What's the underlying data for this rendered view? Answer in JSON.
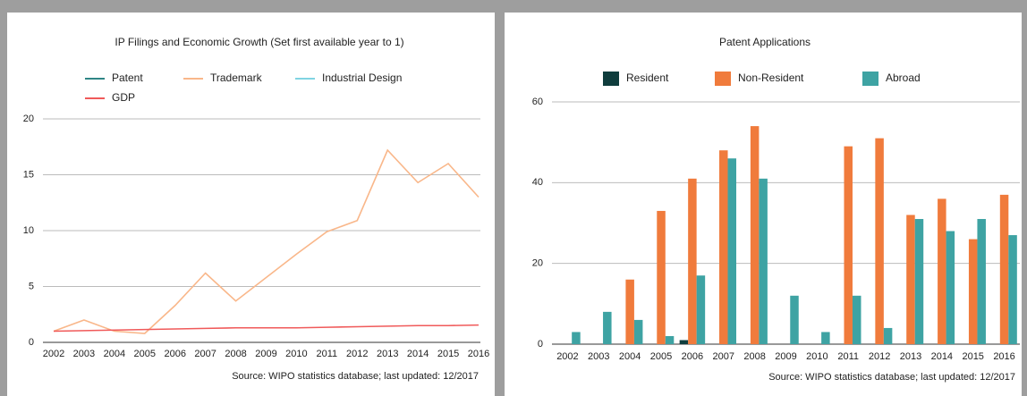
{
  "chart_data": [
    {
      "type": "line",
      "title": "IP Filings and Economic Growth (Set first available year to 1)",
      "categories": [
        "2002",
        "2003",
        "2004",
        "2005",
        "2006",
        "2007",
        "2008",
        "2009",
        "2010",
        "2011",
        "2012",
        "2013",
        "2014",
        "2015",
        "2016"
      ],
      "series": [
        {
          "name": "Patent",
          "color": "#2f8585",
          "values": [
            null,
            null,
            null,
            null,
            null,
            null,
            null,
            null,
            null,
            null,
            null,
            null,
            null,
            null,
            null
          ]
        },
        {
          "name": "Trademark",
          "color": "#f9b78a",
          "values": [
            1,
            2,
            1,
            0.8,
            3.3,
            6.2,
            3.7,
            5.8,
            7.9,
            9.9,
            10.9,
            17.2,
            14.3,
            16,
            13
          ]
        },
        {
          "name": "Industrial Design",
          "color": "#80d4e2",
          "values": [
            null,
            null,
            null,
            null,
            null,
            null,
            null,
            null,
            null,
            null,
            null,
            null,
            null,
            null,
            null
          ]
        },
        {
          "name": "GDP",
          "color": "#f05a5a",
          "values": [
            1,
            1.05,
            1.1,
            1.15,
            1.2,
            1.25,
            1.3,
            1.3,
            1.3,
            1.35,
            1.4,
            1.45,
            1.5,
            1.5,
            1.55
          ]
        }
      ],
      "ylim": [
        0,
        20
      ],
      "yticks": [
        0,
        5,
        10,
        15,
        20
      ],
      "grid": true,
      "note": "Source: WIPO statistics database; last updated: 12/2017"
    },
    {
      "type": "bar",
      "title": "Patent Applications",
      "categories": [
        "2002",
        "2003",
        "2004",
        "2005",
        "2006",
        "2007",
        "2008",
        "2009",
        "2010",
        "2011",
        "2012",
        "2013",
        "2014",
        "2015",
        "2016"
      ],
      "series": [
        {
          "name": "Resident",
          "color": "#0f3d3d",
          "values": [
            0,
            0,
            0,
            0,
            1,
            0,
            0,
            0,
            0,
            0,
            0,
            0,
            0,
            0,
            0
          ]
        },
        {
          "name": "Non-Resident",
          "color": "#f07b3c",
          "values": [
            0,
            0,
            16,
            33,
            41,
            48,
            54,
            0,
            0,
            49,
            51,
            32,
            36,
            26,
            37
          ]
        },
        {
          "name": "Abroad",
          "color": "#3ea3a3",
          "values": [
            3,
            8,
            6,
            2,
            17,
            46,
            41,
            12,
            3,
            12,
            4,
            31,
            28,
            31,
            27
          ]
        }
      ],
      "ylim": [
        0,
        60
      ],
      "yticks": [
        0,
        20,
        40,
        60
      ],
      "grid": true,
      "note": "Source: WIPO statistics database; last updated: 12/2017"
    }
  ]
}
